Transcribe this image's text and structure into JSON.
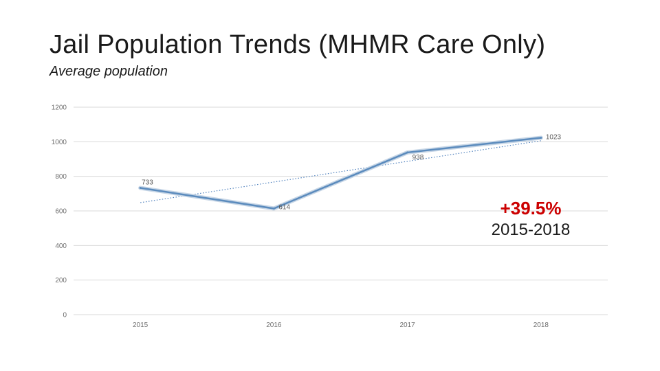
{
  "slide": {
    "title": "Jail Population Trends (MHMR Care Only)",
    "subtitle": "Average population"
  },
  "callout": {
    "percent": "+39.5%",
    "range": "2015-2018",
    "percent_color": "#cc0000"
  },
  "colors": {
    "line": "#5b8bbd",
    "line_shadow": "#c7d6e6",
    "trendline": "#4f81bd",
    "grid": "#d9d9d9"
  },
  "chart_data": {
    "type": "line",
    "title": "",
    "xlabel": "",
    "ylabel": "",
    "categories": [
      "2015",
      "2016",
      "2017",
      "2018"
    ],
    "series": [
      {
        "name": "Average population",
        "values": [
          733,
          614,
          938,
          1023
        ]
      }
    ],
    "data_labels": [
      "733",
      "614",
      "938",
      "1023"
    ],
    "trendline": {
      "type": "linear",
      "style": "dotted"
    },
    "ylim": [
      0,
      1200
    ],
    "yticks": [
      0,
      200,
      400,
      600,
      800,
      1000,
      1200
    ],
    "ytick_labels": [
      "0",
      "200",
      "400",
      "600",
      "800",
      "1000",
      "1200"
    ],
    "grid": true,
    "legend": "none"
  }
}
